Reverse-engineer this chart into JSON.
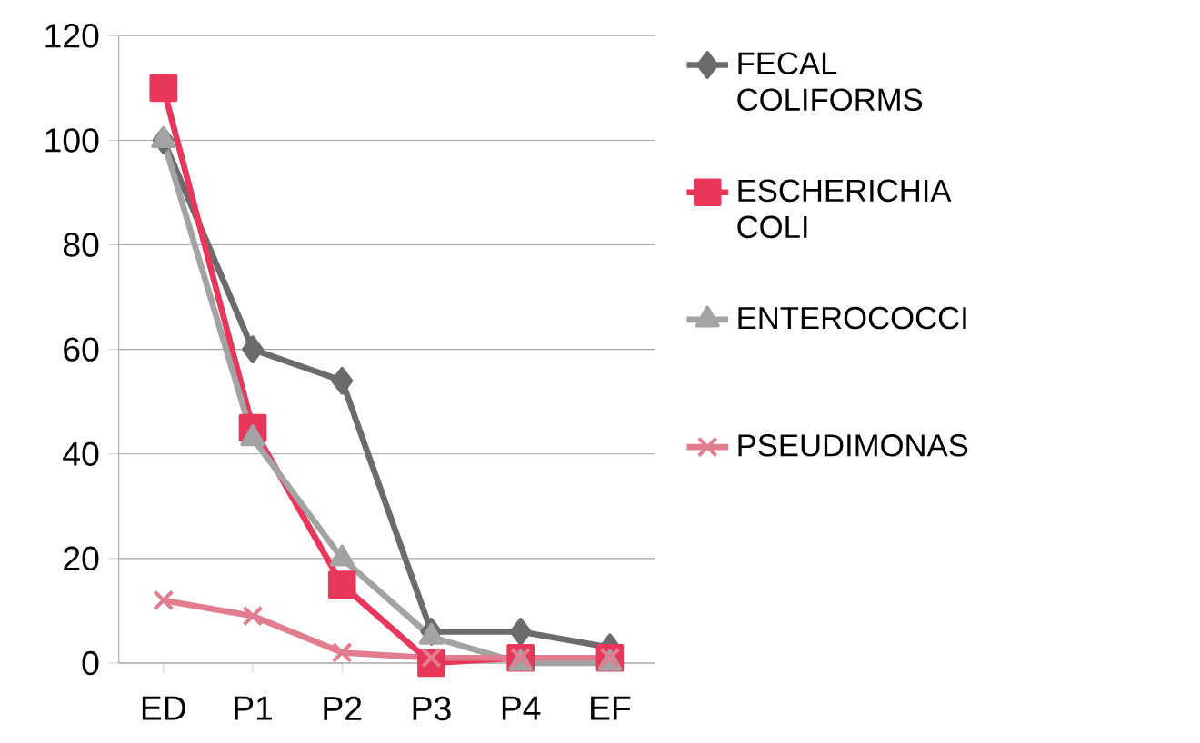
{
  "chart_data": {
    "type": "line",
    "categories": [
      "ED",
      "P1",
      "P2",
      "P3",
      "P4",
      "EF"
    ],
    "series": [
      {
        "name": "FECAL COLIFORMS",
        "color": "#6b6b6b",
        "marker": "diamond",
        "values": [
          100,
          60,
          54,
          6,
          6,
          3
        ]
      },
      {
        "name": "ESCHERICHIA COLI",
        "color": "#e8375a",
        "marker": "square",
        "values": [
          110,
          45,
          15,
          0,
          1,
          1
        ]
      },
      {
        "name": "ENTEROCOCCI",
        "color": "#a3a3a3",
        "marker": "triangle",
        "values": [
          100,
          43,
          20,
          5,
          0,
          0
        ]
      },
      {
        "name": "PSEUDIMONAS",
        "color": "#e27d90",
        "marker": "cross",
        "values": [
          12,
          9,
          2,
          1,
          1,
          1
        ]
      }
    ],
    "ylim": [
      0,
      120
    ],
    "yticks": [
      0,
      20,
      40,
      60,
      80,
      100,
      120
    ],
    "grid": "y",
    "legend": "right",
    "line_style": "solid"
  }
}
